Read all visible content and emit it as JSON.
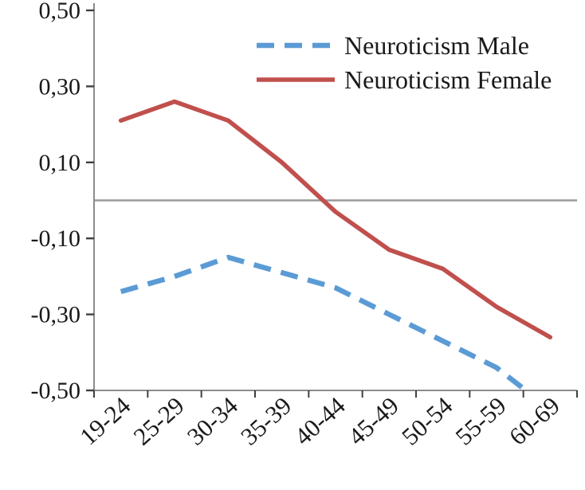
{
  "figure": {
    "kind": "line-chart-figure",
    "background": "#ffffff"
  },
  "chart_data": {
    "type": "line",
    "title": "",
    "xlabel": "",
    "ylabel": "",
    "categories": [
      "19-24",
      "25-29",
      "30-34",
      "35-39",
      "40-44",
      "45-49",
      "50-54",
      "55-59",
      "60-69"
    ],
    "series": [
      {
        "name": "Neuroticism Male",
        "color": "#5B9BD5",
        "style": "dashed",
        "values": [
          -0.24,
          -0.2,
          -0.15,
          -0.19,
          -0.23,
          -0.3,
          -0.37,
          -0.44,
          -0.55
        ]
      },
      {
        "name": "Neuroticism Female",
        "color": "#C0504D",
        "style": "solid",
        "values": [
          0.21,
          0.26,
          0.21,
          0.1,
          -0.03,
          -0.13,
          -0.18,
          -0.28,
          -0.36
        ]
      }
    ],
    "ylim": [
      -0.5,
      0.5
    ],
    "yticks": [
      {
        "value": 0.5,
        "label": "0,50"
      },
      {
        "value": 0.3,
        "label": "0,30"
      },
      {
        "value": 0.1,
        "label": "0,10"
      },
      {
        "value": -0.1,
        "label": "-0,10"
      },
      {
        "value": -0.3,
        "label": "-0,30"
      },
      {
        "value": -0.5,
        "label": "-0,50"
      }
    ],
    "legend_position": "top-right",
    "grid": false,
    "zero_line": true,
    "colors": {
      "axis": "#8c8c8c",
      "tick": "#404040",
      "zero_line": "#999999",
      "text": "#1a1a1a"
    }
  }
}
